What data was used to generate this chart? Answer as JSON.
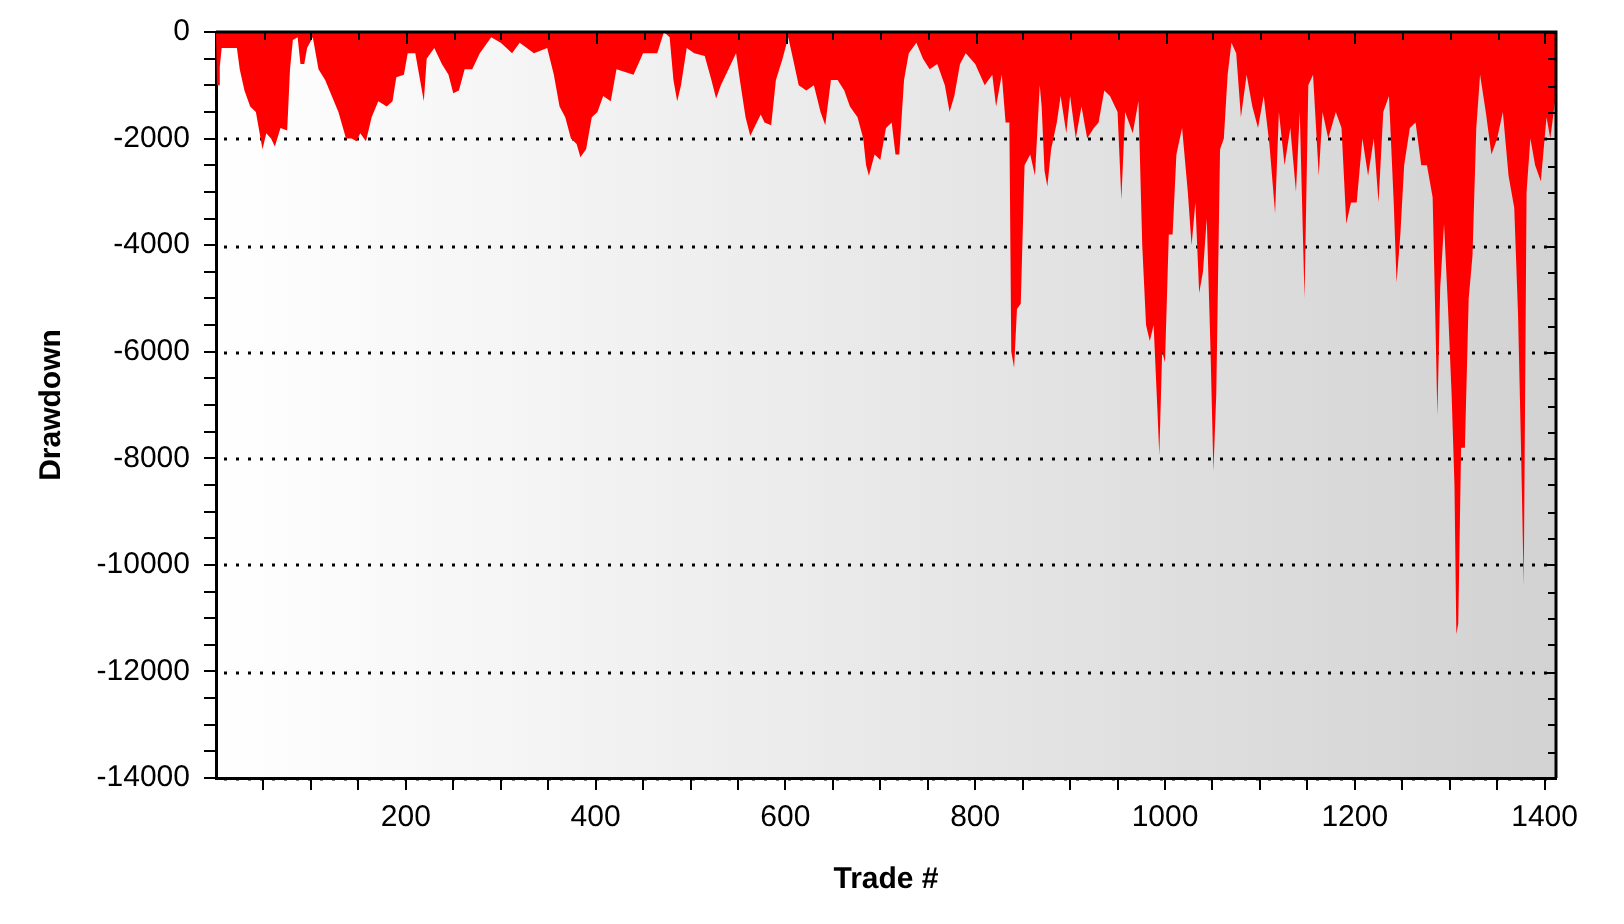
{
  "chart_data": {
    "type": "area",
    "xlabel": "Trade #",
    "ylabel": "Drawdown",
    "color": "#ff0000",
    "grid": "y",
    "xlim": [
      0,
      1412
    ],
    "ylim": [
      -14000,
      0
    ],
    "xticks": [
      {
        "value": 50,
        "label": null
      },
      {
        "value": 100,
        "label": null
      },
      {
        "value": 150,
        "label": null
      },
      200,
      {
        "value": 250,
        "label": null
      },
      {
        "value": 300,
        "label": null
      },
      {
        "value": 350,
        "label": null
      },
      400,
      {
        "value": 450,
        "label": null
      },
      {
        "value": 500,
        "label": null
      },
      {
        "value": 550,
        "label": null
      },
      600,
      {
        "value": 650,
        "label": null
      },
      {
        "value": 700,
        "label": null
      },
      {
        "value": 750,
        "label": null
      },
      800,
      {
        "value": 850,
        "label": null
      },
      {
        "value": 900,
        "label": null
      },
      {
        "value": 950,
        "label": null
      },
      1000,
      {
        "value": 1050,
        "label": null
      },
      {
        "value": 1100,
        "label": null
      },
      {
        "value": 1150,
        "label": null
      },
      1200,
      {
        "value": 1250,
        "label": null
      },
      {
        "value": 1300,
        "label": null
      },
      {
        "value": 1350,
        "label": null
      },
      1400
    ],
    "yticks": [
      0,
      {
        "value": -500,
        "label": null
      },
      {
        "value": -1000,
        "label": null
      },
      {
        "value": -1500,
        "label": null
      },
      -2000,
      {
        "value": -2500,
        "label": null
      },
      {
        "value": -3000,
        "label": null
      },
      {
        "value": -3500,
        "label": null
      },
      -4000,
      {
        "value": -4500,
        "label": null
      },
      {
        "value": -5000,
        "label": null
      },
      {
        "value": -5500,
        "label": null
      },
      -6000,
      {
        "value": -6500,
        "label": null
      },
      {
        "value": -7000,
        "label": null
      },
      {
        "value": -7500,
        "label": null
      },
      -8000,
      {
        "value": -8500,
        "label": null
      },
      {
        "value": -9000,
        "label": null
      },
      {
        "value": -9500,
        "label": null
      },
      -10000,
      {
        "value": -10500,
        "label": null
      },
      {
        "value": -11000,
        "label": null
      },
      {
        "value": -11500,
        "label": null
      },
      -12000,
      {
        "value": -12500,
        "label": null
      },
      {
        "value": -13000,
        "label": null
      },
      {
        "value": -13500,
        "label": null
      },
      -14000
    ],
    "x": [
      0,
      1,
      3,
      4,
      6,
      22,
      25,
      30,
      36,
      42,
      46,
      49,
      53,
      58,
      62,
      68,
      75,
      78,
      81,
      86,
      89,
      93,
      96,
      102,
      108,
      115,
      122,
      129,
      137,
      143,
      148,
      152,
      158,
      164,
      171,
      180,
      186,
      190,
      198,
      202,
      210,
      219,
      222,
      230,
      238,
      245,
      250,
      256,
      262,
      270,
      278,
      290,
      300,
      312,
      320,
      335,
      349,
      356,
      362,
      368,
      374,
      380,
      384,
      390,
      396,
      402,
      408,
      416,
      422,
      440,
      450,
      465,
      472,
      478,
      482,
      486,
      490,
      496,
      504,
      515,
      522,
      527,
      532,
      540,
      548,
      552,
      558,
      563,
      567,
      574,
      578,
      585,
      590,
      597,
      603,
      608,
      614,
      622,
      630,
      637,
      642,
      648,
      655,
      662,
      668,
      676,
      682,
      685,
      688,
      694,
      700,
      706,
      712,
      716,
      720,
      725,
      730,
      738,
      745,
      752,
      760,
      768,
      773,
      778,
      784,
      790,
      800,
      810,
      818,
      822,
      828,
      832,
      836,
      838,
      841,
      844,
      848,
      852,
      858,
      863,
      868,
      870,
      873,
      876,
      880,
      886,
      890,
      896,
      900,
      906,
      912,
      918,
      925,
      930,
      936,
      942,
      950,
      954,
      958,
      966,
      972,
      976,
      980,
      984,
      988,
      992,
      994,
      997,
      1000,
      1004,
      1008,
      1012,
      1018,
      1024,
      1028,
      1032,
      1036,
      1040,
      1044,
      1048,
      1051,
      1054,
      1058,
      1062,
      1066,
      1070,
      1075,
      1080,
      1086,
      1092,
      1098,
      1104,
      1110,
      1116,
      1120,
      1126,
      1132,
      1138,
      1142,
      1147,
      1151,
      1156,
      1162,
      1166,
      1172,
      1180,
      1186,
      1191,
      1196,
      1202,
      1208,
      1214,
      1220,
      1225,
      1230,
      1236,
      1241,
      1244,
      1248,
      1252,
      1258,
      1264,
      1270,
      1276,
      1282,
      1285,
      1287,
      1290,
      1294,
      1298,
      1302,
      1305,
      1307,
      1309,
      1312,
      1316,
      1320,
      1324,
      1328,
      1332,
      1338,
      1344,
      1350,
      1356,
      1362,
      1368,
      1372,
      1375,
      1378,
      1381,
      1385,
      1390,
      1396,
      1402,
      1406,
      1411
    ],
    "values": [
      0,
      -1000,
      -1000,
      -650,
      -300,
      -300,
      -700,
      -1100,
      -1400,
      -1500,
      -1900,
      -2200,
      -1900,
      -2000,
      -2150,
      -1800,
      -1850,
      -700,
      -150,
      -100,
      -600,
      -600,
      -300,
      -100,
      -700,
      -900,
      -1200,
      -1500,
      -2000,
      -2000,
      -2050,
      -1900,
      -2050,
      -1600,
      -1300,
      -1400,
      -1300,
      -850,
      -800,
      -400,
      -400,
      -1300,
      -500,
      -300,
      -600,
      -800,
      -1150,
      -1100,
      -700,
      -700,
      -400,
      -100,
      -200,
      -400,
      -200,
      -400,
      -300,
      -800,
      -1400,
      -1600,
      -2000,
      -2100,
      -2350,
      -2200,
      -1600,
      -1500,
      -1200,
      -1300,
      -700,
      -800,
      -400,
      -400,
      0,
      -100,
      -900,
      -1300,
      -1000,
      -300,
      -400,
      -450,
      -900,
      -1250,
      -1000,
      -700,
      -400,
      -900,
      -1600,
      -1950,
      -1800,
      -1550,
      -1700,
      -1750,
      -900,
      -500,
      -100,
      -500,
      -1000,
      -1100,
      -1000,
      -1500,
      -1750,
      -900,
      -900,
      -1100,
      -1400,
      -1600,
      -2000,
      -2500,
      -2700,
      -2300,
      -2400,
      -1800,
      -1700,
      -2300,
      -2300,
      -900,
      -400,
      -200,
      -500,
      -700,
      -600,
      -1000,
      -1500,
      -1200,
      -600,
      -400,
      -600,
      -1000,
      -800,
      -1400,
      -800,
      -1700,
      -1700,
      -6000,
      -6300,
      -5200,
      -5100,
      -2500,
      -2300,
      -2700,
      -1000,
      -1400,
      -2600,
      -2900,
      -2200,
      -1700,
      -1200,
      -1900,
      -1200,
      -2000,
      -1400,
      -2000,
      -1800,
      -1700,
      -1100,
      -1200,
      -1500,
      -3150,
      -1500,
      -1900,
      -1300,
      -4000,
      -5500,
      -5800,
      -5500,
      -7100,
      -7950,
      -6000,
      -6200,
      -3800,
      -3800,
      -2300,
      -1800,
      -3000,
      -4000,
      -3200,
      -4900,
      -4500,
      -3500,
      -6000,
      -8250,
      -6800,
      -2200,
      -2000,
      -800,
      -200,
      -400,
      -1600,
      -800,
      -1400,
      -1800,
      -1200,
      -2100,
      -3400,
      -1500,
      -2500,
      -1800,
      -3000,
      -1500,
      -5000,
      -1000,
      -800,
      -2700,
      -1500,
      -2000,
      -1500,
      -1800,
      -3600,
      -3200,
      -3200,
      -2000,
      -2700,
      -2000,
      -3200,
      -1500,
      -1200,
      -3200,
      -4700,
      -3800,
      -2500,
      -1800,
      -1700,
      -2500,
      -2500,
      -3100,
      -5500,
      -7200,
      -4800,
      -3600,
      -5100,
      -6800,
      -8500,
      -11300,
      -11100,
      -7800,
      -7800,
      -5000,
      -4200,
      -1800,
      -800,
      -1500,
      -2300,
      -2000,
      -1500,
      -2700,
      -3300,
      -5300,
      -7700,
      -10400,
      -3000,
      -2000,
      -2500,
      -2800,
      -1600,
      -2000,
      -1300
    ]
  }
}
